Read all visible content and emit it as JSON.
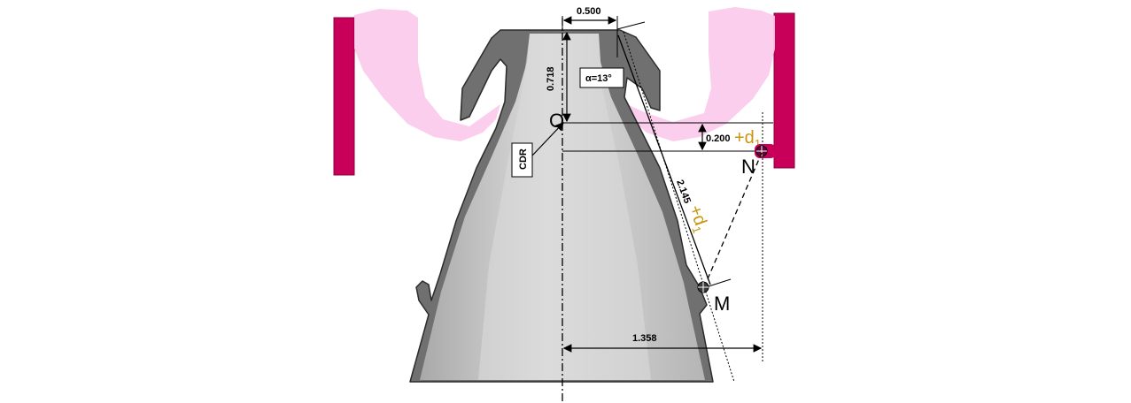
{
  "dimensions": {
    "top_width": "0.500",
    "height": "0.718",
    "offset": "0.200",
    "slant": "2.145",
    "radius": "1.358"
  },
  "labels": {
    "angle": "α=13°",
    "cdr": "CDR",
    "point_o": "O",
    "point_n": "N",
    "point_m": "M",
    "delta_plus": "+d",
    "delta_sub": "1",
    "delta_plus_slant": "+d",
    "delta_sub_slant": "1"
  },
  "colors": {
    "magenta": "#C8005A",
    "pink": "#F9C9EA",
    "gold": "#C8960C",
    "shell_dark": "#707070",
    "shell_light": "#D8D8D8"
  }
}
